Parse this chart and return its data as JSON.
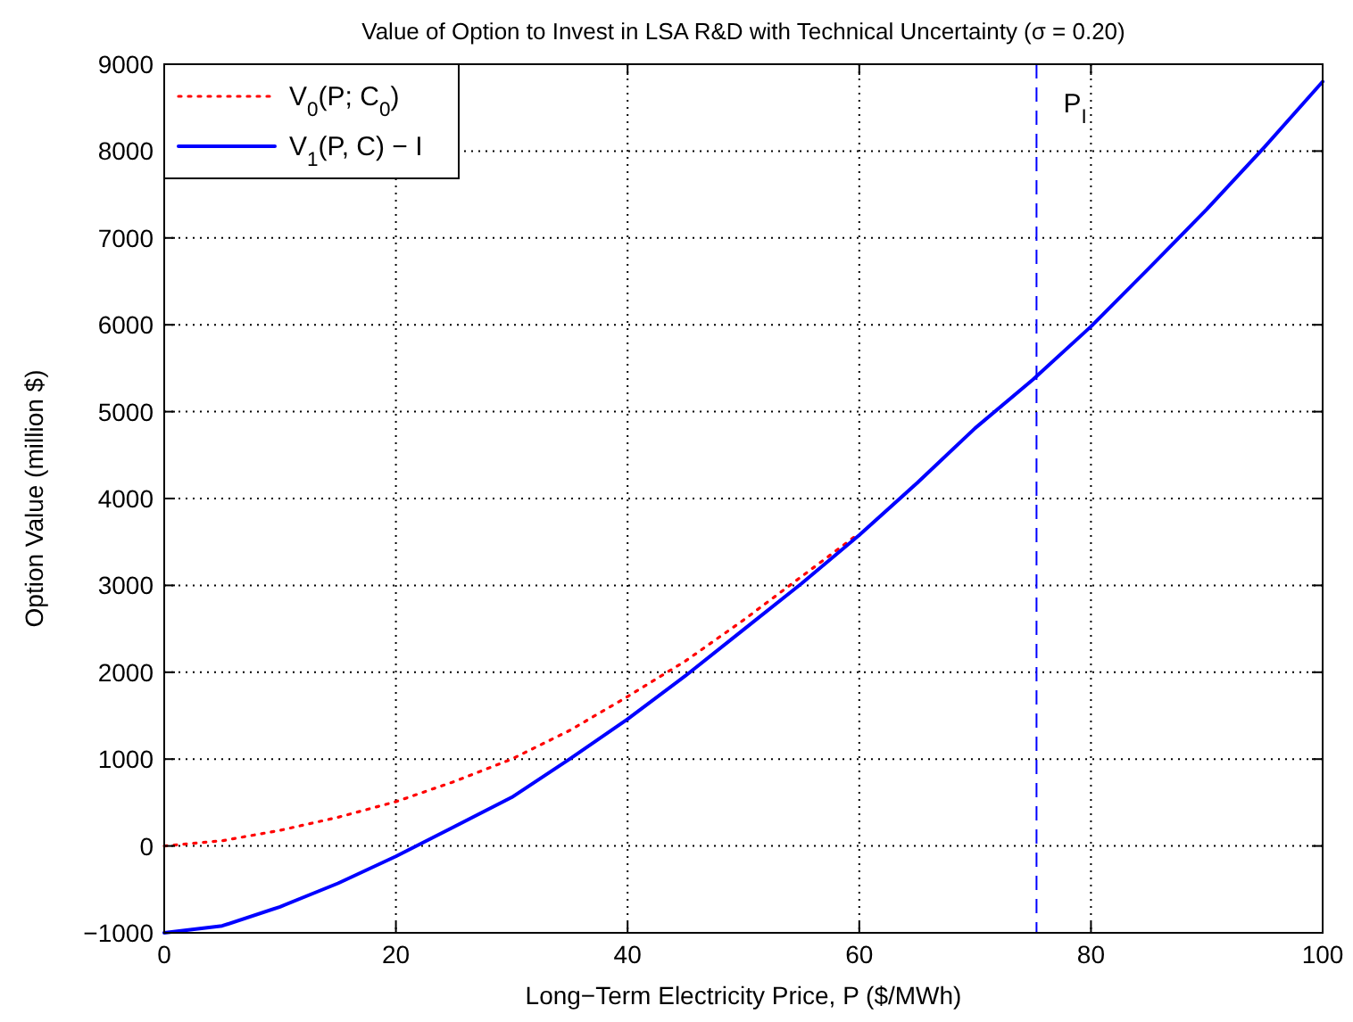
{
  "chart_data": {
    "type": "line",
    "title": "Value of Option to Invest in LSA R&D with Technical Uncertainty (σ = 0.20)",
    "xlabel": "Long−Term Electricity Price, P ($/MWh)",
    "ylabel": "Option Value (million $)",
    "xlim": [
      0,
      100
    ],
    "xticks": [
      0,
      20,
      40,
      60,
      80,
      100
    ],
    "ylim": [
      -1000,
      9000
    ],
    "yticks": [
      -1000,
      0,
      1000,
      2000,
      3000,
      4000,
      5000,
      6000,
      7000,
      8000,
      9000
    ],
    "grid": true,
    "legend": "top left",
    "series": [
      {
        "name": "V$_{0}$(P; C$_{0}$)",
        "color": "#ff0000",
        "line_style": "dotted",
        "x": [
          0,
          5,
          10,
          15,
          20,
          25,
          30,
          35,
          40,
          45,
          50,
          55,
          60
        ],
        "values": [
          0,
          60,
          180,
          330,
          510,
          740,
          1000,
          1330,
          1720,
          2130,
          2600,
          3100,
          3600
        ]
      },
      {
        "name": "V$_{1}$(P, C) − I",
        "color": "#0000ff",
        "line_style": "solid",
        "x": [
          0,
          5,
          10,
          15,
          20,
          25,
          30,
          35,
          40,
          45,
          50,
          55,
          60,
          65,
          70,
          75,
          80,
          85,
          90,
          95,
          100
        ],
        "values": [
          -1000,
          -920,
          -700,
          -430,
          -120,
          220,
          560,
          1000,
          1460,
          1960,
          2490,
          3020,
          3580,
          4180,
          4810,
          5370,
          5980,
          6650,
          7330,
          8050,
          8800
        ]
      }
    ],
    "ref_lines": [
      {
        "axis": "x",
        "value": 75.3,
        "label": "P$_{I}$",
        "color": "#0000ff",
        "line_style": "dashed"
      }
    ]
  }
}
